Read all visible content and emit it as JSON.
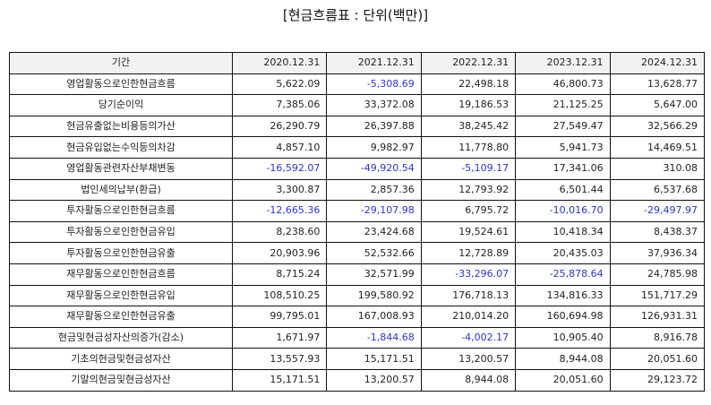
{
  "title": "[현금흐름표 : 단위(백만)]",
  "table": {
    "header": [
      "기간",
      "2020.12.31",
      "2021.12.31",
      "2022.12.31",
      "2023.12.31",
      "2024.12.31"
    ],
    "rows": [
      {
        "label": "영업활동으로인한현금흐름",
        "values": [
          "5,622.09",
          "-5,308.69",
          "22,498.18",
          "46,800.73",
          "13,628.77"
        ]
      },
      {
        "label": "당기순이익",
        "values": [
          "7,385.06",
          "33,372.08",
          "19,186.53",
          "21,125.25",
          "5,647.00"
        ]
      },
      {
        "label": "현금유출없는비용등의가산",
        "values": [
          "26,290.79",
          "26,397.88",
          "38,245.42",
          "27,549.47",
          "32,566.29"
        ]
      },
      {
        "label": "현금유입없는수익등의차감",
        "values": [
          "4,857.10",
          "9,982.97",
          "11,778.80",
          "5,941.73",
          "14,469.51"
        ]
      },
      {
        "label": "영업활동관련자산부채변동",
        "values": [
          "-16,592.07",
          "-49,920.54",
          "-5,109.17",
          "17,341.06",
          "310.08"
        ]
      },
      {
        "label": "법인세의납부(환급)",
        "values": [
          "3,300.87",
          "2,857.36",
          "12,793.92",
          "6,501.44",
          "6,537.68"
        ]
      },
      {
        "label": "투자활동으로인한현금흐름",
        "values": [
          "-12,665.36",
          "-29,107.98",
          "6,795.72",
          "-10,016.70",
          "-29,497.97"
        ]
      },
      {
        "label": "투자활동으로인한현금유입",
        "values": [
          "8,238.60",
          "23,424.68",
          "19,524.61",
          "10,418.34",
          "8,438.37"
        ]
      },
      {
        "label": "투자활동으로인한현금유출",
        "values": [
          "20,903.96",
          "52,532.66",
          "12,728.89",
          "20,435.03",
          "37,936.34"
        ]
      },
      {
        "label": "재무활동으로인한현금흐름",
        "values": [
          "8,715.24",
          "32,571.99",
          "-33,296.07",
          "-25,878.64",
          "24,785.98"
        ]
      },
      {
        "label": "재무활동으로인한현금유입",
        "values": [
          "108,510.25",
          "199,580.92",
          "176,718.13",
          "134,816.33",
          "151,717.29"
        ]
      },
      {
        "label": "재무활동으로인한현금유출",
        "values": [
          "99,795.01",
          "167,008.93",
          "210,014.20",
          "160,694.98",
          "126,931.31"
        ]
      },
      {
        "label": "현금및현금성자산의증가(감소)",
        "values": [
          "1,671.97",
          "-1,844.68",
          "-4,002.17",
          "10,905.40",
          "8,916.78"
        ]
      },
      {
        "label": "기초의현금및현금성자산",
        "values": [
          "13,557.93",
          "15,171.51",
          "13,200.57",
          "8,944.08",
          "20,051.60"
        ]
      },
      {
        "label": "기말의현금및현금성자산",
        "values": [
          "15,171.51",
          "13,200.57",
          "8,944.08",
          "20,051.60",
          "29,123.72"
        ]
      }
    ]
  },
  "colors": {
    "negative": "#2b36c8",
    "header_bg": "#f2f2f2",
    "border": "#111111"
  }
}
